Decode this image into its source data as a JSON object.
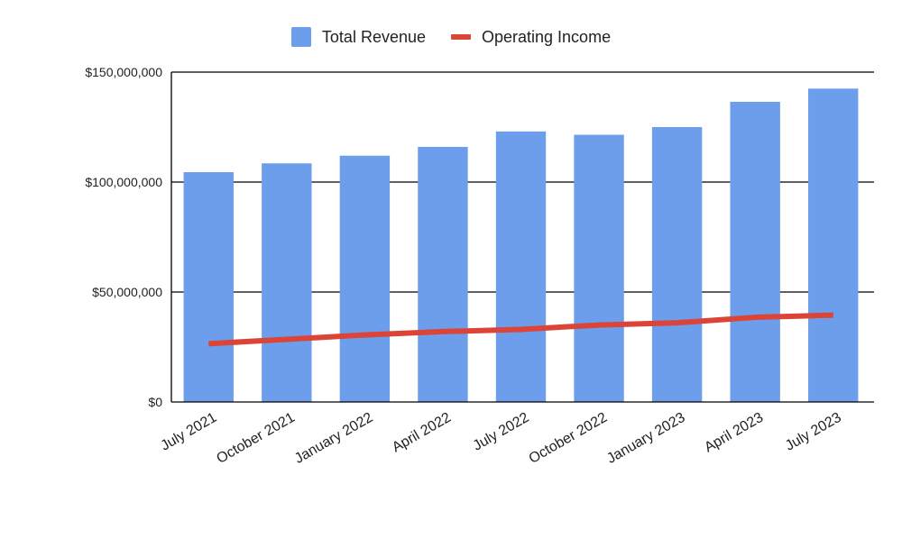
{
  "chart_data": {
    "type": "bar",
    "categories": [
      "July 2021",
      "October 2021",
      "January 2022",
      "April 2022",
      "July 2022",
      "October 2022",
      "January 2023",
      "April 2023",
      "July 2023"
    ],
    "series": [
      {
        "name": "Total Revenue",
        "type": "bar",
        "color": "#6d9eeb",
        "values": [
          104500000,
          108500000,
          112000000,
          116000000,
          123000000,
          121500000,
          125000000,
          136500000,
          142500000
        ]
      },
      {
        "name": "Operating Income",
        "type": "line",
        "color": "#db4437",
        "values": [
          26500000,
          28500000,
          30500000,
          32000000,
          33000000,
          35000000,
          36000000,
          38500000,
          39500000
        ]
      }
    ],
    "yticks": [
      "$0",
      "$50,000,000",
      "$100,000,000",
      "$150,000,000"
    ],
    "ylim": [
      0,
      150000000
    ],
    "ytick_values": [
      0,
      50000000,
      100000000,
      150000000
    ],
    "legend": "top",
    "grid": true,
    "title": "",
    "xlabel": "",
    "ylabel": ""
  }
}
